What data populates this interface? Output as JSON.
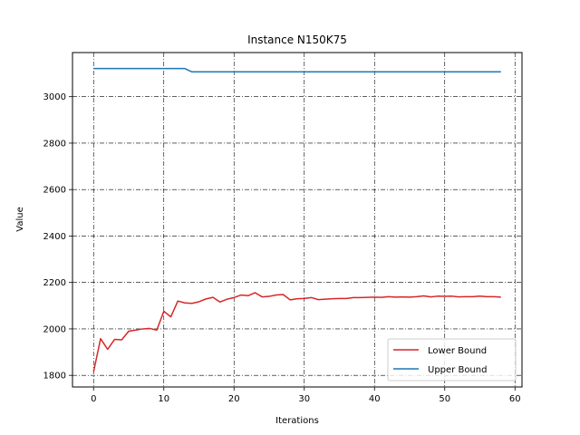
{
  "chart_data": {
    "type": "line",
    "title": "Instance N150K75",
    "xlabel": "Iterations",
    "ylabel": "Value",
    "xlim": [
      -3,
      61
    ],
    "ylim": [
      1750,
      3190
    ],
    "xticks": [
      0,
      10,
      20,
      30,
      40,
      50,
      60
    ],
    "yticks": [
      1800,
      2000,
      2200,
      2400,
      2600,
      2800,
      3000
    ],
    "grid": true,
    "legend_position": "lower-right",
    "series": [
      {
        "name": "Lower Bound",
        "color": "#d62728",
        "x": [
          0,
          1,
          2,
          3,
          4,
          5,
          6,
          7,
          8,
          9,
          10,
          11,
          12,
          13,
          14,
          15,
          16,
          17,
          18,
          19,
          20,
          21,
          22,
          23,
          24,
          25,
          26,
          27,
          28,
          29,
          30,
          31,
          32,
          33,
          34,
          35,
          36,
          37,
          38,
          39,
          40,
          41,
          42,
          43,
          44,
          45,
          46,
          47,
          48,
          49,
          50,
          51,
          52,
          53,
          54,
          55,
          56,
          57,
          58
        ],
        "values": [
          1815,
          1958,
          1912,
          1955,
          1953,
          1990,
          1995,
          2000,
          2002,
          1995,
          2076,
          2052,
          2120,
          2112,
          2110,
          2117,
          2129,
          2136,
          2116,
          2128,
          2135,
          2146,
          2143,
          2156,
          2138,
          2140,
          2146,
          2148,
          2125,
          2130,
          2131,
          2135,
          2126,
          2128,
          2130,
          2131,
          2131,
          2135,
          2135,
          2136,
          2137,
          2136,
          2139,
          2137,
          2138,
          2137,
          2139,
          2142,
          2138,
          2141,
          2140,
          2141,
          2138,
          2139,
          2139,
          2141,
          2139,
          2139,
          2137
        ]
      },
      {
        "name": "Upper Bound",
        "color": "#1f77b4",
        "x": [
          0,
          1,
          2,
          3,
          4,
          5,
          6,
          7,
          8,
          9,
          10,
          11,
          12,
          13,
          14,
          15,
          16,
          17,
          18,
          19,
          20,
          21,
          22,
          23,
          24,
          25,
          26,
          27,
          28,
          29,
          30,
          31,
          32,
          33,
          34,
          35,
          36,
          37,
          38,
          39,
          40,
          41,
          42,
          43,
          44,
          45,
          46,
          47,
          48,
          49,
          50,
          51,
          52,
          53,
          54,
          55,
          56,
          57,
          58
        ],
        "values": [
          3121,
          3121,
          3121,
          3121,
          3121,
          3121,
          3121,
          3121,
          3121,
          3121,
          3121,
          3121,
          3121,
          3121,
          3107,
          3107,
          3107,
          3107,
          3107,
          3107,
          3107,
          3107,
          3107,
          3107,
          3107,
          3107,
          3107,
          3107,
          3107,
          3107,
          3107,
          3107,
          3107,
          3107,
          3107,
          3107,
          3107,
          3107,
          3107,
          3107,
          3107,
          3107,
          3107,
          3107,
          3107,
          3107,
          3107,
          3107,
          3107,
          3107,
          3107,
          3107,
          3107,
          3107,
          3107,
          3107,
          3107,
          3107,
          3107
        ]
      }
    ]
  }
}
